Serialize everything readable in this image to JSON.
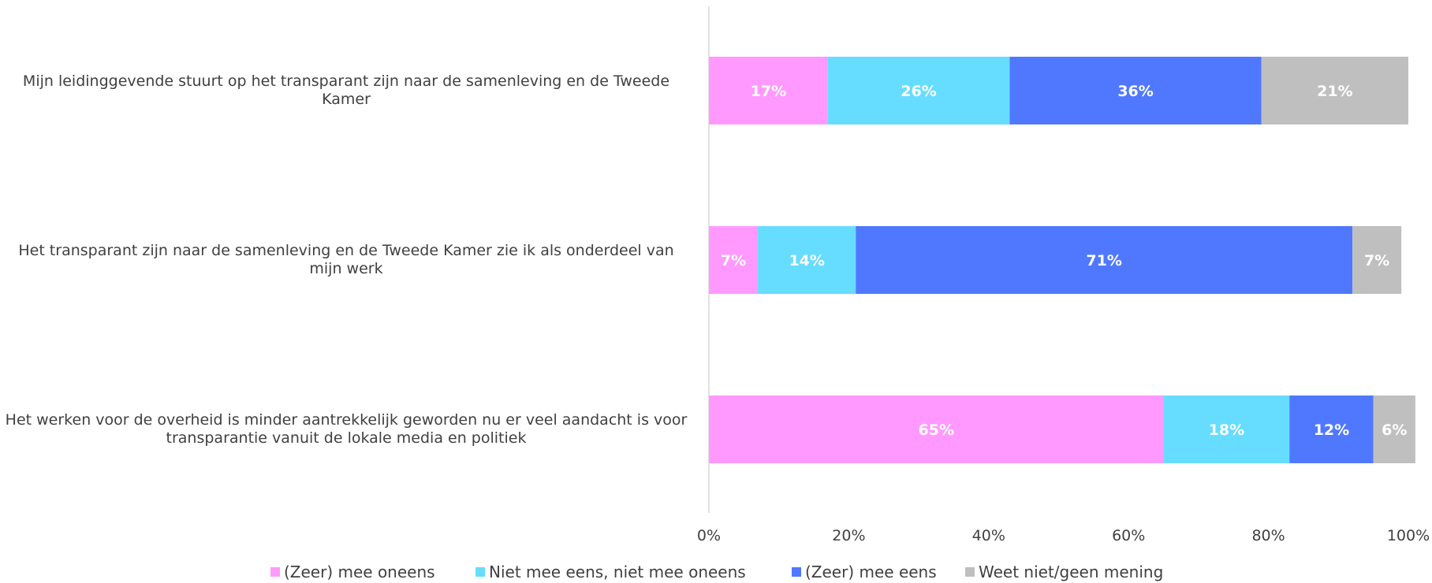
{
  "chart_data": {
    "type": "bar",
    "orientation": "horizontal",
    "stacked": true,
    "categories": [
      "Mijn leidinggevende stuurt op het transparant zijn naar de samenleving en de Tweede Kamer",
      "Het transparant zijn naar de samenleving en de Tweede Kamer zie ik als onderdeel van mijn werk",
      "Het werken voor de overheid is minder aantrekkelijk geworden nu er veel aandacht is voor transparantie vanuit de lokale media en politiek"
    ],
    "series": [
      {
        "name": "(Zeer) mee oneens",
        "color": "#ff99ff",
        "values": [
          17,
          7,
          65
        ]
      },
      {
        "name": "Niet mee eens, niet mee oneens",
        "color": "#66ddff",
        "values": [
          26,
          14,
          18
        ]
      },
      {
        "name": "(Zeer) mee eens",
        "color": "#5078ff",
        "values": [
          36,
          71,
          12
        ]
      },
      {
        "name": "Weet niet/geen mening",
        "color": "#bfbfbf",
        "values": [
          21,
          7,
          6
        ]
      }
    ],
    "data_labels": [
      [
        "17%",
        "26%",
        "36%",
        "21%"
      ],
      [
        "7%",
        "14%",
        "71%",
        "7%"
      ],
      [
        "65%",
        "18%",
        "12%",
        "6%"
      ]
    ],
    "xlim": [
      0,
      100
    ],
    "x_ticks": [
      "0%",
      "20%",
      "40%",
      "60%",
      "80%",
      "100%"
    ],
    "grid": false,
    "legend_position": "bottom",
    "axis_color": "#d9d9d9",
    "label_color": "#ffffff",
    "text_color": "#404040"
  }
}
